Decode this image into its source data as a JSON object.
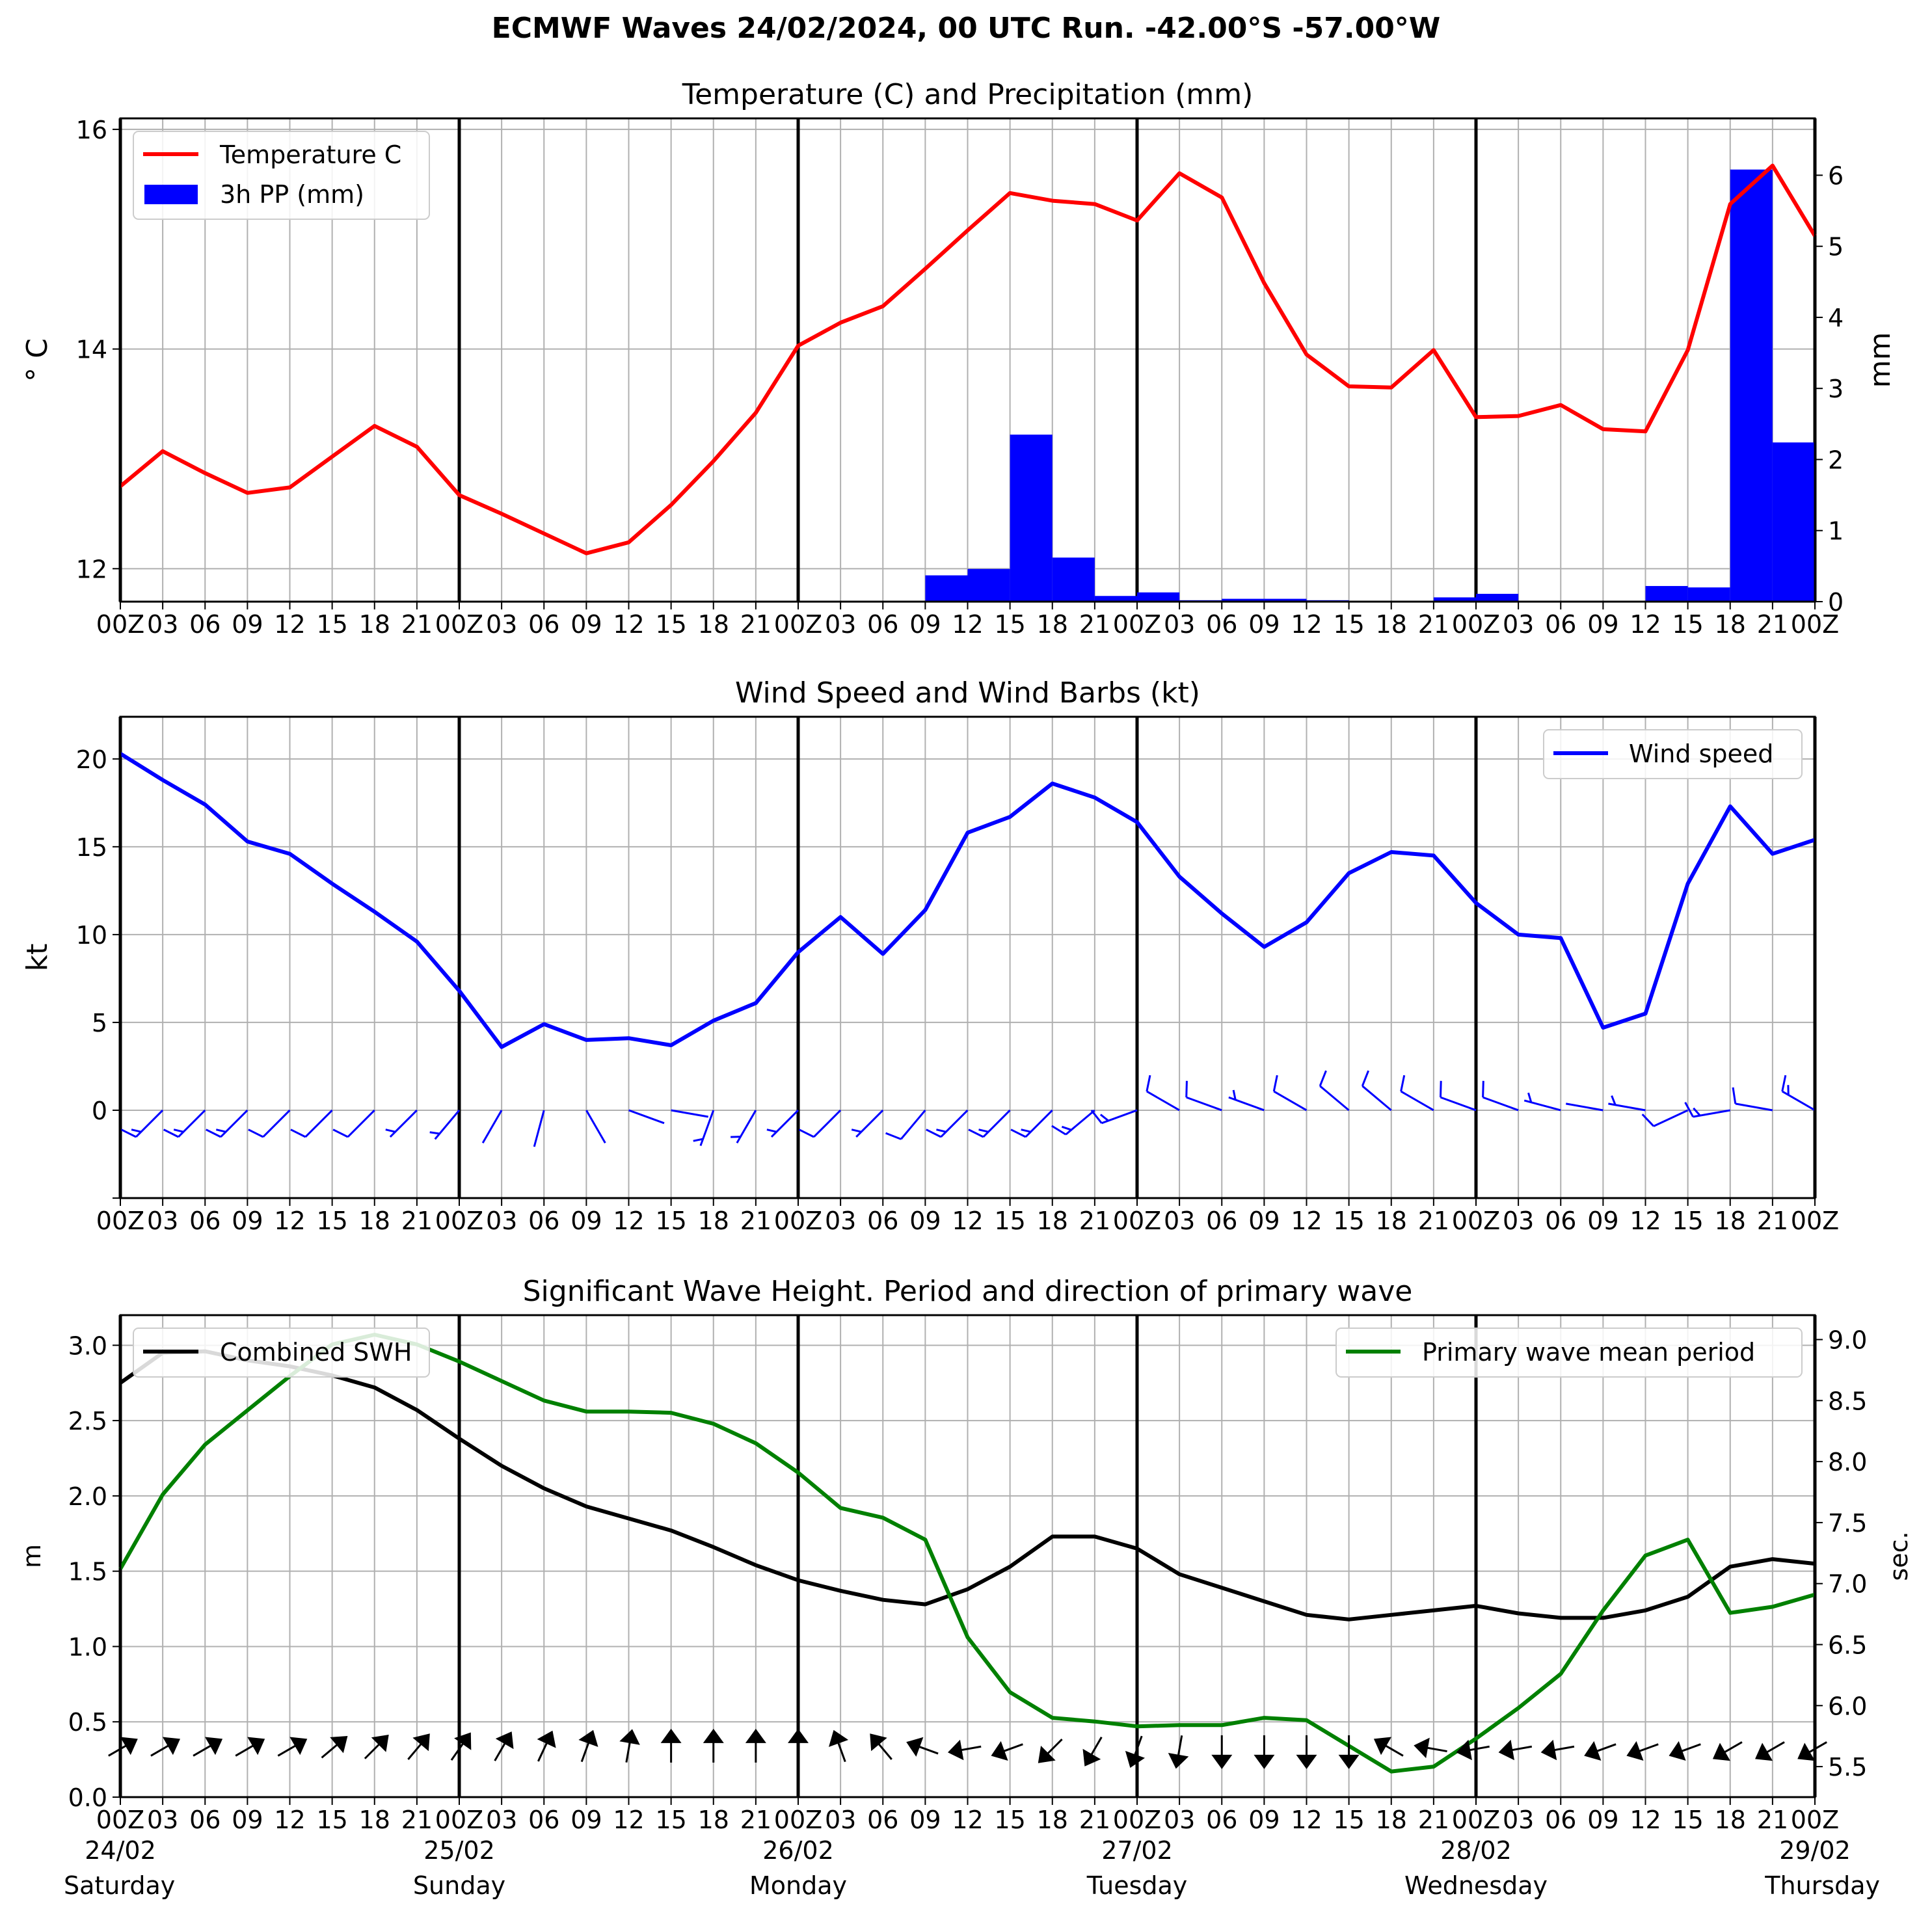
{
  "title": "ECMWF Waves 24/02/2024, 00 UTC Run. -42.00°S -57.00°W",
  "time_tick_labels": [
    "00Z",
    "03",
    "06",
    "09",
    "12",
    "15",
    "18",
    "21",
    "00Z",
    "03",
    "06",
    "09",
    "12",
    "15",
    "18",
    "21",
    "00Z",
    "03",
    "06",
    "09",
    "12",
    "15",
    "18",
    "21",
    "00Z",
    "03",
    "06",
    "09",
    "12",
    "15",
    "18",
    "21",
    "00Z",
    "03",
    "06",
    "09",
    "12",
    "15",
    "18",
    "21",
    "00Z"
  ],
  "day_labels": [
    {
      "date": "24/02",
      "weekday": "Saturday"
    },
    {
      "date": "25/02",
      "weekday": "Sunday"
    },
    {
      "date": "26/02",
      "weekday": "Monday"
    },
    {
      "date": "27/02",
      "weekday": "Tuesday"
    },
    {
      "date": "28/02",
      "weekday": "Wednesday"
    },
    {
      "date": "29/02",
      "weekday": "Thursday"
    }
  ],
  "colors": {
    "temperature": "#ff0000",
    "precip": "#0000ff",
    "wind": "#0000ff",
    "swh": "#000000",
    "period": "#008000",
    "grid": "#b0b0b0"
  },
  "chart_data": [
    {
      "type": "line",
      "title": "Temperature (C) and Precipitation (mm)",
      "ylabel": "$^\\circ$C",
      "ylabel_display": "° C",
      "y2label": "mm",
      "ylim": [
        11.7,
        16.1
      ],
      "y2lim": [
        0,
        6.8
      ],
      "yticks": [
        12,
        14,
        16
      ],
      "y2ticks": [
        0,
        1,
        2,
        3,
        4,
        5,
        6
      ],
      "legend": {
        "position": "top-left",
        "entries": [
          "Temperature C",
          "3h PP (mm)"
        ]
      },
      "grid": true,
      "series": [
        {
          "name": "Temperature C",
          "type": "line",
          "values": [
            12.75,
            13.07,
            12.87,
            12.69,
            12.74,
            13.02,
            13.3,
            13.11,
            12.67,
            12.5,
            12.32,
            12.14,
            12.24,
            12.58,
            12.98,
            13.42,
            14.03,
            14.24,
            14.39,
            14.73,
            15.08,
            15.42,
            15.35,
            15.32,
            15.17,
            15.6,
            15.38,
            14.6,
            13.95,
            13.66,
            13.65,
            13.99,
            13.38,
            13.39,
            13.49,
            13.27,
            13.25,
            13.99,
            15.32,
            15.67,
            15.03
          ]
        },
        {
          "name": "3h PP (mm)",
          "type": "bar",
          "values": [
            0,
            0,
            0,
            0,
            0,
            0,
            0,
            0,
            0,
            0,
            0,
            0,
            0,
            0,
            0,
            0,
            0,
            0,
            0,
            0,
            0.37,
            0.46,
            2.35,
            0.62,
            0.08,
            0.13,
            0.02,
            0.04,
            0.04,
            0.02,
            0,
            0.01,
            0.06,
            0.11,
            0,
            0,
            0,
            0.22,
            0.2,
            6.08,
            2.24
          ]
        }
      ]
    },
    {
      "type": "line",
      "title": "Wind Speed and Wind Barbs (kt)",
      "ylabel": "kt",
      "ylim": [
        -5,
        22.4
      ],
      "yticks": [
        0,
        5,
        10,
        15,
        20
      ],
      "legend": {
        "position": "top-right",
        "entries": [
          "Wind speed"
        ]
      },
      "grid": true,
      "series": [
        {
          "name": "Wind speed",
          "values": [
            20.3,
            18.8,
            17.4,
            15.3,
            14.6,
            12.9,
            11.3,
            9.6,
            6.8,
            3.6,
            4.9,
            4.0,
            4.1,
            3.7,
            5.1,
            6.1,
            9.0,
            11.0,
            8.9,
            11.4,
            15.8,
            16.7,
            18.6,
            17.8,
            16.4,
            13.3,
            11.2,
            9.3,
            10.7,
            13.5,
            14.7,
            14.5,
            11.8,
            10.0,
            9.8,
            4.7,
            5.5,
            12.9,
            17.3,
            14.6,
            15.4
          ]
        },
        {
          "name": "barb_direction_deg",
          "values": [
            225,
            225,
            225,
            225,
            225,
            225,
            225,
            225,
            220,
            210,
            195,
            150,
            110,
            100,
            200,
            210,
            225,
            225,
            225,
            220,
            225,
            225,
            225,
            230,
            250,
            300,
            290,
            290,
            300,
            310,
            310,
            300,
            290,
            290,
            285,
            280,
            280,
            245,
            260,
            280,
            300
          ]
        }
      ]
    },
    {
      "type": "line",
      "title": "Significant Wave Height. Period and direction of primary wave",
      "ylabel": "m",
      "y2label": "sec.",
      "ylim": [
        0,
        3.2
      ],
      "y2lim": [
        5.25,
        9.2
      ],
      "yticks": [
        0.0,
        0.5,
        1.0,
        1.5,
        2.0,
        2.5,
        3.0
      ],
      "y2ticks": [
        5.5,
        6.0,
        6.5,
        7.0,
        7.5,
        8.0,
        8.5,
        9.0
      ],
      "legend": {
        "left": [
          "Combined SWH"
        ],
        "right": [
          "Primary wave mean period"
        ]
      },
      "grid": true,
      "series": [
        {
          "name": "Combined SWH",
          "values": [
            2.75,
            2.95,
            2.96,
            2.9,
            2.86,
            2.8,
            2.72,
            2.57,
            2.38,
            2.2,
            2.05,
            1.93,
            1.85,
            1.77,
            1.66,
            1.54,
            1.44,
            1.37,
            1.31,
            1.28,
            1.38,
            1.53,
            1.73,
            1.73,
            1.65,
            1.48,
            1.39,
            1.3,
            1.21,
            1.18,
            1.21,
            1.24,
            1.27,
            1.22,
            1.19,
            1.19,
            1.24,
            1.33,
            1.53,
            1.58,
            1.55
          ]
        },
        {
          "name": "Primary wave mean period",
          "values": [
            7.12,
            7.73,
            8.14,
            8.42,
            8.7,
            8.96,
            9.04,
            8.96,
            8.82,
            8.66,
            8.5,
            8.41,
            8.41,
            8.4,
            8.31,
            8.15,
            7.91,
            7.62,
            7.54,
            7.36,
            6.56,
            6.11,
            5.9,
            5.87,
            5.83,
            5.84,
            5.84,
            5.9,
            5.88,
            5.67,
            5.46,
            5.5,
            5.73,
            5.98,
            6.26,
            6.78,
            7.23,
            7.36,
            6.76,
            6.81,
            6.91
          ]
        },
        {
          "name": "wave_direction_deg",
          "values": [
            60,
            60,
            60,
            60,
            60,
            50,
            45,
            40,
            35,
            30,
            25,
            20,
            10,
            0,
            0,
            0,
            0,
            340,
            320,
            290,
            260,
            250,
            225,
            210,
            200,
            190,
            180,
            180,
            180,
            180,
            300,
            280,
            260,
            260,
            260,
            250,
            250,
            250,
            240,
            240,
            240
          ]
        }
      ]
    }
  ]
}
